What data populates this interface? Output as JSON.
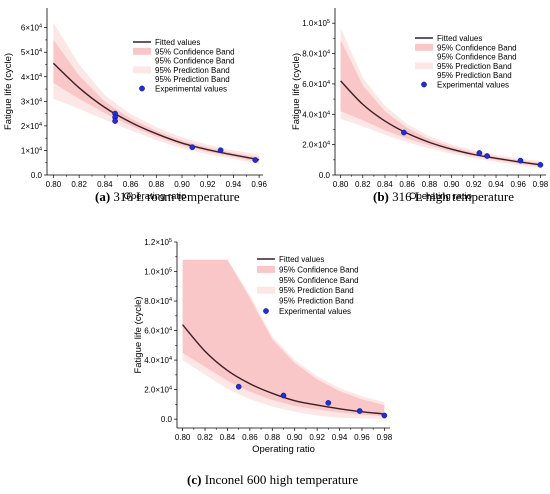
{
  "chart_data": [
    {
      "type": "line",
      "caption_letter": "(a)",
      "caption_text": " 316 L room temperature",
      "xlabel": "Operating ratio",
      "ylabel": "Fatigue life (cycle)",
      "xlim": [
        0.795,
        0.963
      ],
      "ylim": [
        0,
        68000
      ],
      "xticks": [
        0.8,
        0.82,
        0.84,
        0.86,
        0.88,
        0.9,
        0.92,
        0.94,
        0.96
      ],
      "xtick_labels": [
        "0.80",
        "0.82",
        "0.84",
        "0.86",
        "0.88",
        "0.90",
        "0.92",
        "0.94",
        "0.96"
      ],
      "yticks": [
        0,
        10000,
        20000,
        30000,
        40000,
        50000,
        60000
      ],
      "ytick_labels": [
        {
          "base": "0.0",
          "exp": ""
        },
        {
          "base": "1×10",
          "exp": "4"
        },
        {
          "base": "2×10",
          "exp": "4"
        },
        {
          "base": "3×10",
          "exp": "4"
        },
        {
          "base": "4×10",
          "exp": "4"
        },
        {
          "base": "5×10",
          "exp": "4"
        },
        {
          "base": "6×10",
          "exp": "4"
        }
      ],
      "grid": false,
      "legend_position": "top-right",
      "legend": [
        "Fitted values",
        "95% Confidence Band",
        "95% Confidence Band",
        "95% Prediction Band",
        "95% Prediction Band",
        "Experimental values"
      ],
      "fitted": {
        "x": [
          0.8,
          0.82,
          0.84,
          0.86,
          0.88,
          0.9,
          0.92,
          0.94,
          0.96
        ],
        "y": [
          45500,
          35500,
          27500,
          21500,
          16800,
          13000,
          10300,
          8200,
          6200
        ]
      },
      "confidence_band": {
        "x": [
          0.8,
          0.82,
          0.84,
          0.86,
          0.88,
          0.9,
          0.92,
          0.94,
          0.96
        ],
        "upper": [
          55000,
          40500,
          29800,
          23000,
          18000,
          14000,
          11200,
          9000,
          7200
        ],
        "lower": [
          37500,
          31000,
          25200,
          20000,
          15600,
          12000,
          9400,
          7400,
          5200
        ]
      },
      "prediction_band": {
        "x": [
          0.8,
          0.82,
          0.84,
          0.86,
          0.88,
          0.9,
          0.92,
          0.94,
          0.96
        ],
        "upper": [
          62000,
          45000,
          32500,
          24800,
          19500,
          15300,
          12300,
          10000,
          8300
        ],
        "lower": [
          31000,
          27000,
          22500,
          18200,
          14200,
          10800,
          8400,
          6500,
          4400
        ]
      },
      "experimental": {
        "x": [
          0.848,
          0.848,
          0.848,
          0.908,
          0.93,
          0.957
        ],
        "y": [
          25000,
          23500,
          22000,
          11300,
          10100,
          6100
        ]
      }
    },
    {
      "type": "line",
      "caption_letter": "(b)",
      "caption_text": " 316 L high temperature",
      "xlabel": "Operating ratio",
      "ylabel": "Fatigue life (cycle)",
      "xlim": [
        0.795,
        0.985
      ],
      "ylim": [
        0,
        110000
      ],
      "xticks": [
        0.8,
        0.82,
        0.84,
        0.86,
        0.88,
        0.9,
        0.92,
        0.94,
        0.96,
        0.98
      ],
      "xtick_labels": [
        "0.80",
        "0.82",
        "0.84",
        "0.86",
        "0.88",
        "0.90",
        "0.92",
        "0.94",
        "0.96",
        "0.98"
      ],
      "yticks": [
        0,
        20000,
        40000,
        60000,
        80000,
        100000
      ],
      "ytick_labels": [
        {
          "base": "0.0",
          "exp": ""
        },
        {
          "base": "2.0×10",
          "exp": "4"
        },
        {
          "base": "4.0×10",
          "exp": "4"
        },
        {
          "base": "6.0×10",
          "exp": "4"
        },
        {
          "base": "8.0×10",
          "exp": "4"
        },
        {
          "base": "1.0×10",
          "exp": "5"
        }
      ],
      "grid": false,
      "legend_position": "top-right",
      "legend": [
        "Fitted values",
        "95% Confidence Band",
        "95% Confidence Band",
        "95% Prediction Band",
        "95% Prediction Band",
        "Experimental values"
      ],
      "fitted": {
        "x": [
          0.8,
          0.82,
          0.84,
          0.86,
          0.88,
          0.9,
          0.92,
          0.94,
          0.96,
          0.98
        ],
        "y": [
          62000,
          46500,
          35500,
          27500,
          21500,
          17000,
          13500,
          11000,
          8700,
          6800
        ]
      },
      "confidence_band": {
        "x": [
          0.8,
          0.82,
          0.84,
          0.86,
          0.88,
          0.9,
          0.92,
          0.94,
          0.96,
          0.98
        ],
        "upper": [
          89000,
          59000,
          42000,
          31000,
          23500,
          18500,
          14800,
          12000,
          9800,
          8000
        ],
        "lower": [
          42000,
          36000,
          29500,
          24000,
          19500,
          15500,
          12300,
          9800,
          7600,
          5600
        ]
      },
      "prediction_band": {
        "x": [
          0.8,
          0.82,
          0.84,
          0.86,
          0.88,
          0.9,
          0.92,
          0.94,
          0.96,
          0.98
        ],
        "upper": [
          97000,
          64000,
          45500,
          33500,
          25500,
          20000,
          16200,
          13300,
          11000,
          9200
        ],
        "lower": [
          37000,
          32000,
          26500,
          21500,
          17500,
          14000,
          11000,
          8600,
          6400,
          4400
        ]
      },
      "experimental": {
        "x": [
          0.857,
          0.925,
          0.932,
          0.962,
          0.98
        ],
        "y": [
          28000,
          14500,
          12500,
          9500,
          6700
        ]
      }
    },
    {
      "type": "line",
      "caption_letter": "(c)",
      "caption_text": " Inconel 600 high temperature",
      "xlabel": "Operating ratio",
      "ylabel": "Fatigue life (cycle)",
      "xlim": [
        0.795,
        0.985
      ],
      "ylim": [
        -6000,
        120000
      ],
      "xticks": [
        0.8,
        0.82,
        0.84,
        0.86,
        0.88,
        0.9,
        0.92,
        0.94,
        0.96,
        0.98
      ],
      "xtick_labels": [
        "0.80",
        "0.82",
        "0.84",
        "0.86",
        "0.88",
        "0.90",
        "0.92",
        "0.94",
        "0.96",
        "0.98"
      ],
      "yticks": [
        0,
        20000,
        40000,
        60000,
        80000,
        100000,
        120000
      ],
      "ytick_labels": [
        {
          "base": "0.0",
          "exp": ""
        },
        {
          "base": "2.0×10",
          "exp": "4"
        },
        {
          "base": "4.0×10",
          "exp": "4"
        },
        {
          "base": "6.0×10",
          "exp": "4"
        },
        {
          "base": "8.0×10",
          "exp": "4"
        },
        {
          "base": "1.0×10",
          "exp": "5"
        },
        {
          "base": "1.2×10",
          "exp": "5"
        }
      ],
      "grid": false,
      "legend_position": "top-right",
      "legend": [
        "Fitted values",
        "95% Confidence Band",
        "95% Confidence Band",
        "95% Prediction Band",
        "95% Prediction Band",
        "Experimental values"
      ],
      "fitted": {
        "x": [
          0.8,
          0.82,
          0.84,
          0.86,
          0.88,
          0.9,
          0.92,
          0.94,
          0.96,
          0.98
        ],
        "y": [
          64000,
          46000,
          33000,
          24000,
          17500,
          12500,
          9500,
          7000,
          5000,
          3500
        ]
      },
      "confidence_band": {
        "x": [
          0.8,
          0.84,
          0.86,
          0.88,
          0.9,
          0.92,
          0.94,
          0.96,
          0.98
        ],
        "upper": [
          108000,
          108000,
          82000,
          54000,
          38000,
          27000,
          19000,
          13500,
          9500
        ],
        "lower": [
          45000,
          26000,
          18500,
          13000,
          9000,
          6500,
          4500,
          3000,
          2000
        ]
      },
      "prediction_band": {
        "x": [
          0.8,
          0.84,
          0.86,
          0.88,
          0.9,
          0.92,
          0.94,
          0.96,
          0.98
        ],
        "upper": [
          108000,
          108000,
          84000,
          56000,
          40000,
          29000,
          21000,
          15500,
          11500
        ],
        "lower": [
          40000,
          20500,
          13500,
          8500,
          5000,
          2500,
          1000,
          500,
          0
        ]
      },
      "experimental": {
        "x": [
          0.85,
          0.89,
          0.93,
          0.958,
          0.98
        ],
        "y": [
          22000,
          16000,
          11000,
          5500,
          2500
        ]
      }
    }
  ]
}
